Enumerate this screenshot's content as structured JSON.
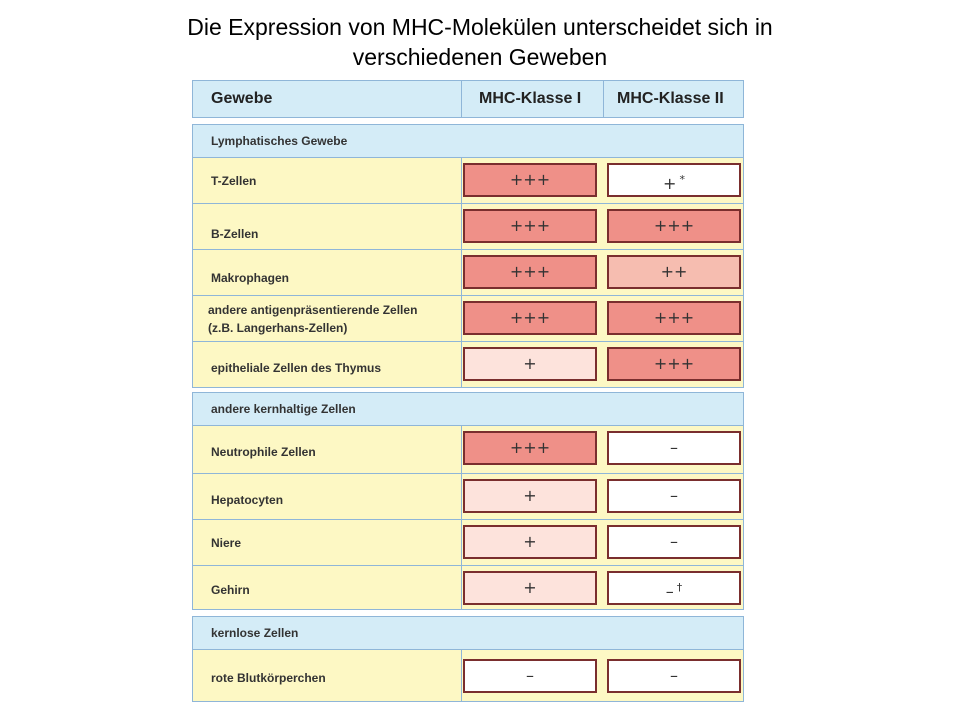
{
  "title": {
    "line1": "Die Expression von MHC-Molekülen unterscheidet sich in",
    "line2": "verschiedenen Geweben"
  },
  "table": {
    "headers": {
      "tissue": "Gewebe",
      "class1": "MHC-Klasse I",
      "class2": "MHC-Klasse II"
    },
    "sections": {
      "lymphatic": "Lymphatisches Gewebe",
      "nucleated": "andere kernhaltige Zellen",
      "anucleate": "kernlose Zellen"
    },
    "rows": [
      {
        "label": "T-Zellen",
        "label2": "",
        "class1": "+++",
        "class2": "+",
        "class2_note": "*",
        "level1": "strong",
        "level2": "none"
      },
      {
        "label": "B-Zellen",
        "label2": "",
        "class1": "+++",
        "class2": "+++",
        "class2_note": "",
        "level1": "strong",
        "level2": "strong"
      },
      {
        "label": "Makrophagen",
        "label2": "",
        "class1": "+++",
        "class2": "++",
        "class2_note": "",
        "level1": "strong",
        "level2": "medium"
      },
      {
        "label": "andere antigenpräsentierende Zellen",
        "label2": "(z.B. Langerhans-Zellen)",
        "class1": "+++",
        "class2": "+++",
        "class2_note": "",
        "level1": "strong",
        "level2": "strong"
      },
      {
        "label": "epitheliale Zellen des Thymus",
        "label2": "",
        "class1": "+",
        "class2": "+++",
        "class2_note": "",
        "level1": "weak",
        "level2": "strong"
      },
      {
        "label": "Neutrophile Zellen",
        "label2": "",
        "class1": "+++",
        "class2": "–",
        "class2_note": "",
        "level1": "strong",
        "level2": "none"
      },
      {
        "label": "Hepatocyten",
        "label2": "",
        "class1": "+",
        "class2": "–",
        "class2_note": "",
        "level1": "weak",
        "level2": "none"
      },
      {
        "label": "Niere",
        "label2": "",
        "class1": "+",
        "class2": "–",
        "class2_note": "",
        "level1": "weak",
        "level2": "none"
      },
      {
        "label": "Gehirn",
        "label2": "",
        "class1": "+",
        "class2": "–",
        "class2_note": "†",
        "level1": "weak",
        "level2": "none"
      },
      {
        "label": "rote Blutkörperchen",
        "label2": "",
        "class1": "–",
        "class2": "–",
        "class2_note": "",
        "level1": "none",
        "level2": "none"
      }
    ]
  },
  "colors": {
    "strong": "#ef9088",
    "medium": "#f6bdb0",
    "weak": "#fde3dc",
    "none": "#ffffff",
    "header": "#d4ecf7",
    "row": "#fdf8c4"
  }
}
